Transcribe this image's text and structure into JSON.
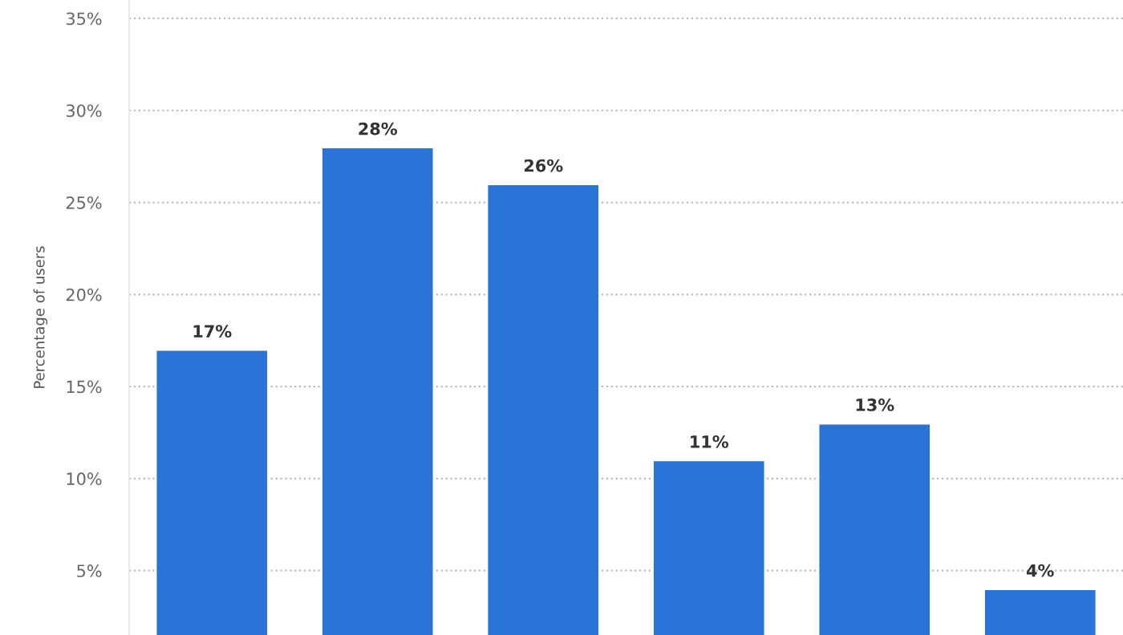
{
  "chart_data": {
    "type": "bar",
    "ylabel": "Percentage of users",
    "categories": [
      null,
      null,
      null,
      null,
      null,
      null
    ],
    "values": [
      17,
      28,
      26,
      11,
      13,
      4
    ],
    "value_labels": [
      "17%",
      "28%",
      "26%",
      "11%",
      "13%",
      "4%"
    ],
    "color": "#2a74d8",
    "ylim": [
      1.5,
      36
    ],
    "yticks": [
      {
        "value": 5,
        "label": "5%"
      },
      {
        "value": 10,
        "label": "10%"
      },
      {
        "value": 15,
        "label": "15%"
      },
      {
        "value": 20,
        "label": "20%"
      },
      {
        "value": 25,
        "label": "25%"
      },
      {
        "value": 30,
        "label": "30%"
      },
      {
        "value": 35,
        "label": "35%"
      }
    ],
    "grid": "y"
  }
}
